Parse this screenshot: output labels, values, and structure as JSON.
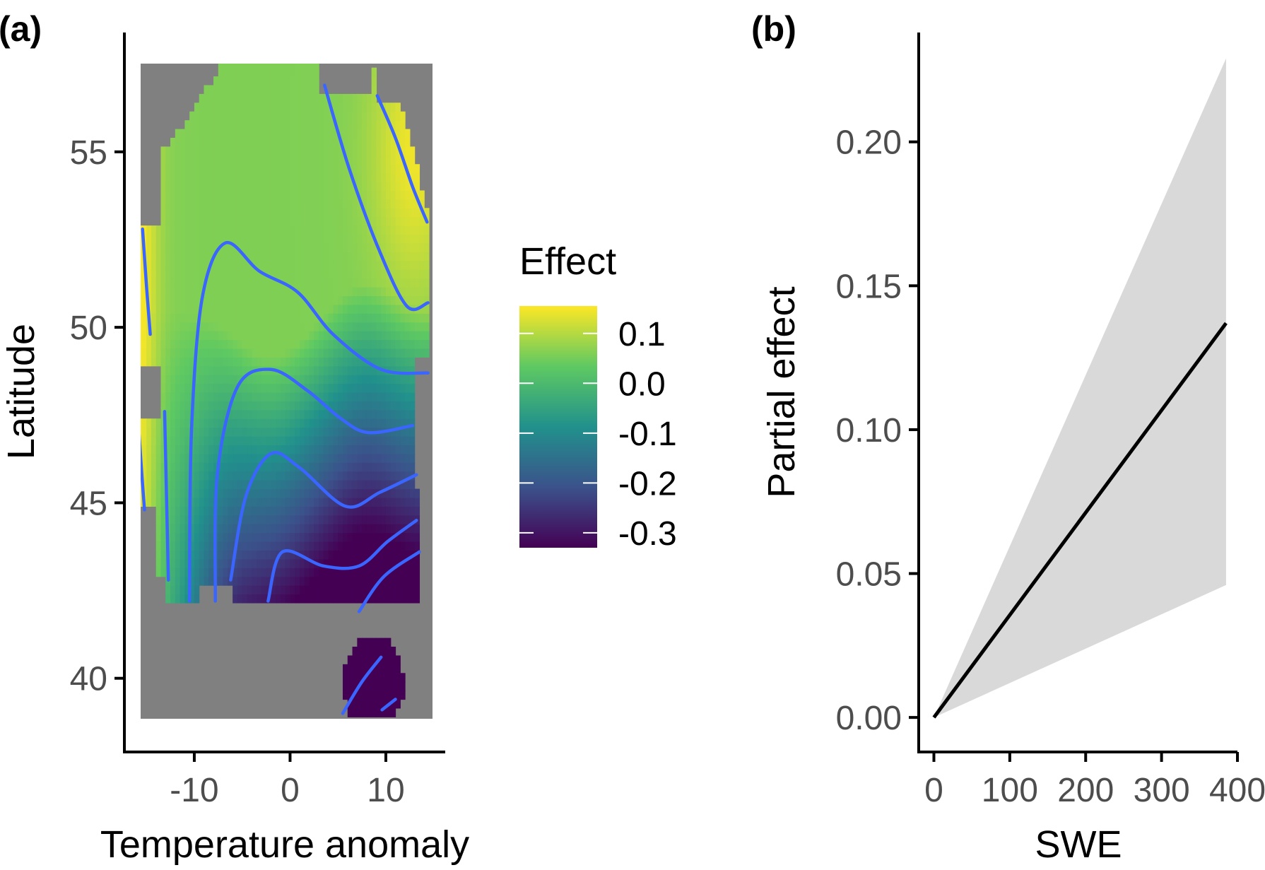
{
  "colors": {
    "background": "#ffffff",
    "axis": "#000000",
    "tick_text": "#4d4d4d",
    "no_data": "#808080",
    "contour": "#3a66ff",
    "ribbon": "#d9d9d9",
    "line": "#000000",
    "viridis": [
      "#440154",
      "#3b528b",
      "#21918c",
      "#5ec962",
      "#fde725"
    ]
  },
  "chart_data": [
    {
      "panel": "(a)",
      "type": "heatmap",
      "xlabel": "Temperature anomaly",
      "ylabel": "Latitude",
      "x_ticks": [
        -10,
        0,
        10
      ],
      "x_tick_labels": [
        "-10",
        "0",
        "10"
      ],
      "y_ticks": [
        40,
        45,
        50,
        55
      ],
      "y_tick_labels": [
        "40",
        "45",
        "50",
        "55"
      ],
      "xlim": [
        -17.3,
        16.2
      ],
      "ylim": [
        37.9,
        58.4
      ],
      "legend": {
        "title": "Effect",
        "position": "right",
        "range": [
          -0.33,
          0.155
        ],
        "breaks": [
          0.1,
          0.0,
          -0.1,
          -0.2,
          -0.3
        ],
        "labels": [
          "0.1",
          "0.0",
          "-0.1",
          "-0.2",
          "-0.3"
        ]
      },
      "contours": [
        {
          "level": 0.1,
          "points": [
            [
              -15.4,
              52.8
            ],
            [
              -15.0,
              51.2
            ],
            [
              -14.6,
              49.8
            ]
          ]
        },
        {
          "level": 0.1,
          "points": [
            [
              -15.8,
              47.1
            ],
            [
              -15.5,
              45.9
            ],
            [
              -15.2,
              44.8
            ]
          ]
        },
        {
          "level": 0.05,
          "points": [
            [
              -13.1,
              47.6
            ],
            [
              -12.9,
              45.2
            ],
            [
              -12.7,
              42.8
            ]
          ]
        },
        {
          "level": 0.0,
          "points": [
            [
              -10.5,
              42.2
            ],
            [
              -10.3,
              47.0
            ],
            [
              -9.2,
              50.8
            ],
            [
              -6.8,
              52.4
            ],
            [
              -3.2,
              51.6
            ],
            [
              0.8,
              51.0
            ],
            [
              4.5,
              49.8
            ],
            [
              9.5,
              48.8
            ],
            [
              14.4,
              48.7
            ]
          ]
        },
        {
          "level": 0.05,
          "points": [
            [
              3.6,
              56.9
            ],
            [
              6.2,
              54.5
            ],
            [
              9.3,
              52.2
            ],
            [
              12.2,
              50.6
            ],
            [
              14.4,
              50.7
            ]
          ]
        },
        {
          "level": 0.1,
          "points": [
            [
              9.1,
              56.6
            ],
            [
              11.0,
              55.4
            ],
            [
              12.8,
              54.0
            ],
            [
              14.3,
              53.0
            ]
          ]
        },
        {
          "level": -0.05,
          "points": [
            [
              -7.8,
              42.2
            ],
            [
              -7.6,
              45.8
            ],
            [
              -5.5,
              48.3
            ],
            [
              -2.0,
              48.8
            ],
            [
              1.8,
              48.2
            ],
            [
              5.3,
              47.4
            ],
            [
              8.2,
              47.0
            ],
            [
              12.8,
              47.2
            ]
          ]
        },
        {
          "level": -0.1,
          "points": [
            [
              -6.2,
              42.8
            ],
            [
              -4.6,
              45.2
            ],
            [
              -2.0,
              46.4
            ],
            [
              1.0,
              46.0
            ],
            [
              5.8,
              44.9
            ],
            [
              9.4,
              45.3
            ],
            [
              13.2,
              45.8
            ]
          ]
        },
        {
          "level": -0.15,
          "points": [
            [
              -2.3,
              42.2
            ],
            [
              -0.8,
              43.6
            ],
            [
              3.5,
              43.2
            ],
            [
              7.2,
              43.2
            ],
            [
              10.2,
              43.9
            ],
            [
              13.2,
              44.5
            ]
          ]
        },
        {
          "level": -0.2,
          "points": [
            [
              7.2,
              41.9
            ],
            [
              9.8,
              42.9
            ],
            [
              13.5,
              43.6
            ]
          ]
        },
        {
          "level": -0.25,
          "points": [
            [
              5.5,
              39.0
            ],
            [
              7.5,
              39.9
            ],
            [
              9.5,
              40.6
            ]
          ]
        },
        {
          "level": -0.3,
          "points": [
            [
              9.6,
              39.1
            ],
            [
              11.0,
              39.4
            ]
          ]
        }
      ]
    },
    {
      "panel": "(b)",
      "type": "line",
      "xlabel": "SWE",
      "ylabel": "Partial effect",
      "x_ticks": [
        0,
        100,
        200,
        300,
        400
      ],
      "x_tick_labels": [
        "0",
        "100",
        "200",
        "300",
        "400"
      ],
      "y_ticks": [
        0.0,
        0.05,
        0.1,
        0.15,
        0.2
      ],
      "y_tick_labels": [
        "0.00",
        "0.05",
        "0.10",
        "0.15",
        "0.20"
      ],
      "xlim": [
        -20,
        400
      ],
      "ylim": [
        -0.012,
        0.238
      ],
      "series": [
        {
          "x": [
            0,
            385
          ],
          "y": [
            0.0,
            0.137
          ]
        }
      ],
      "ribbon": {
        "x": [
          0,
          385
        ],
        "lower": [
          0.0,
          0.046
        ],
        "upper": [
          0.0,
          0.229
        ]
      }
    }
  ]
}
